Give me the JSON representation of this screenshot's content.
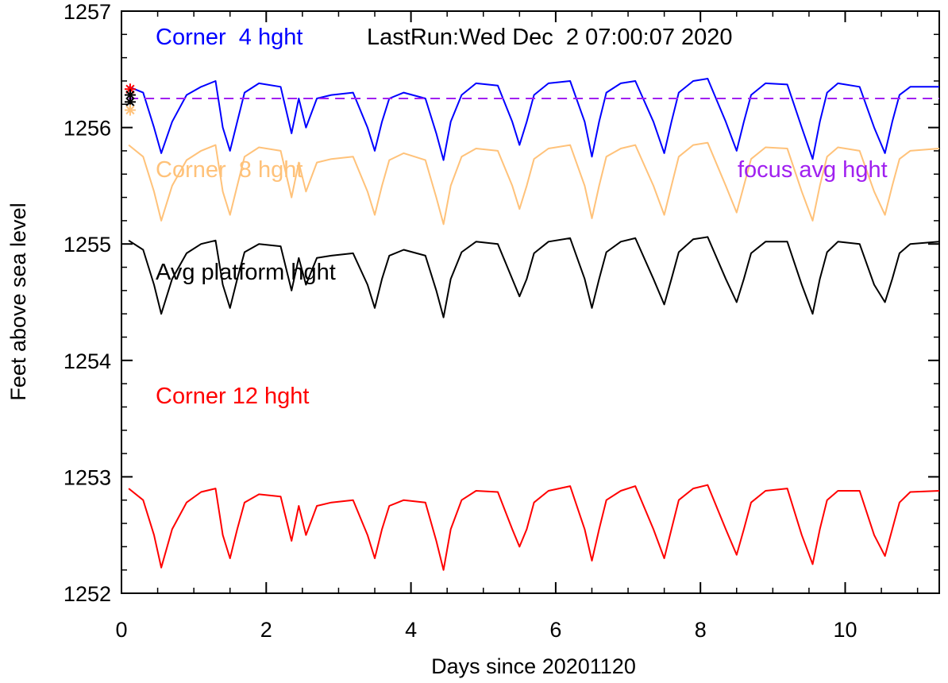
{
  "chart_data": {
    "type": "line",
    "xlabel": "Days since 20201120",
    "ylabel": "Feet above sea level",
    "xlim": [
      0,
      11.3
    ],
    "ylim": [
      1252,
      1257
    ],
    "xticks": [
      0,
      2,
      4,
      6,
      8,
      10
    ],
    "yticks": [
      1252,
      1253,
      1254,
      1255,
      1256,
      1257
    ],
    "grid": false,
    "last_run": "LastRun:Wed Dec  2 07:00:07 2020",
    "series": [
      {
        "name": "Corner  4 hght",
        "color": "#0000ff",
        "x": [
          0.1,
          0.3,
          0.45,
          0.55,
          0.7,
          0.9,
          1.1,
          1.3,
          1.4,
          1.5,
          1.6,
          1.7,
          1.9,
          2.2,
          2.35,
          2.45,
          2.55,
          2.7,
          2.9,
          3.2,
          3.4,
          3.5,
          3.6,
          3.7,
          3.9,
          4.2,
          4.35,
          4.45,
          4.55,
          4.7,
          4.9,
          5.2,
          5.4,
          5.5,
          5.6,
          5.7,
          5.9,
          6.2,
          6.4,
          6.5,
          6.6,
          6.7,
          6.9,
          7.1,
          7.35,
          7.5,
          7.6,
          7.7,
          7.9,
          8.1,
          8.35,
          8.5,
          8.6,
          8.7,
          8.9,
          9.2,
          9.4,
          9.55,
          9.65,
          9.75,
          9.9,
          10.2,
          10.4,
          10.55,
          10.65,
          10.75,
          10.9,
          11.3
        ],
        "y": [
          1256.35,
          1256.3,
          1256.0,
          1255.78,
          1256.05,
          1256.28,
          1256.35,
          1256.4,
          1256.0,
          1255.8,
          1256.05,
          1256.3,
          1256.38,
          1256.35,
          1255.95,
          1256.25,
          1256.0,
          1256.25,
          1256.28,
          1256.3,
          1256.0,
          1255.8,
          1256.05,
          1256.25,
          1256.3,
          1256.25,
          1255.95,
          1255.72,
          1256.05,
          1256.28,
          1256.38,
          1256.36,
          1256.05,
          1255.85,
          1256.05,
          1256.28,
          1256.38,
          1256.4,
          1256.05,
          1255.75,
          1256.05,
          1256.3,
          1256.38,
          1256.4,
          1256.05,
          1255.78,
          1256.05,
          1256.3,
          1256.4,
          1256.42,
          1256.05,
          1255.8,
          1256.05,
          1256.28,
          1256.38,
          1256.37,
          1256.0,
          1255.73,
          1256.05,
          1256.3,
          1256.38,
          1256.35,
          1256.0,
          1255.78,
          1256.05,
          1256.28,
          1256.35,
          1256.35
        ]
      },
      {
        "name": "Corner  8 hght",
        "color": "#ffc27a",
        "x": [
          0.1,
          0.3,
          0.45,
          0.55,
          0.7,
          0.9,
          1.1,
          1.3,
          1.4,
          1.5,
          1.6,
          1.7,
          1.9,
          2.2,
          2.35,
          2.45,
          2.55,
          2.7,
          2.9,
          3.2,
          3.4,
          3.5,
          3.6,
          3.7,
          3.9,
          4.2,
          4.35,
          4.45,
          4.55,
          4.7,
          4.9,
          5.2,
          5.4,
          5.5,
          5.6,
          5.7,
          5.9,
          6.2,
          6.4,
          6.5,
          6.6,
          6.7,
          6.9,
          7.1,
          7.35,
          7.5,
          7.6,
          7.7,
          7.9,
          8.1,
          8.35,
          8.5,
          8.6,
          8.7,
          8.9,
          9.2,
          9.4,
          9.55,
          9.65,
          9.75,
          9.9,
          10.2,
          10.4,
          10.55,
          10.65,
          10.75,
          10.9,
          11.3
        ],
        "y": [
          1255.85,
          1255.75,
          1255.45,
          1255.2,
          1255.5,
          1255.72,
          1255.8,
          1255.85,
          1255.45,
          1255.25,
          1255.5,
          1255.75,
          1255.83,
          1255.8,
          1255.4,
          1255.7,
          1255.45,
          1255.7,
          1255.73,
          1255.75,
          1255.45,
          1255.25,
          1255.5,
          1255.72,
          1255.78,
          1255.72,
          1255.4,
          1255.17,
          1255.5,
          1255.75,
          1255.82,
          1255.8,
          1255.5,
          1255.3,
          1255.5,
          1255.73,
          1255.82,
          1255.85,
          1255.5,
          1255.22,
          1255.5,
          1255.75,
          1255.82,
          1255.85,
          1255.5,
          1255.25,
          1255.5,
          1255.75,
          1255.85,
          1255.87,
          1255.5,
          1255.27,
          1255.5,
          1255.73,
          1255.83,
          1255.82,
          1255.45,
          1255.2,
          1255.5,
          1255.75,
          1255.83,
          1255.8,
          1255.45,
          1255.25,
          1255.5,
          1255.73,
          1255.8,
          1255.82
        ]
      },
      {
        "name": "Avg platform hght",
        "color": "#000000",
        "x": [
          0.1,
          0.3,
          0.45,
          0.55,
          0.7,
          0.9,
          1.1,
          1.3,
          1.4,
          1.5,
          1.6,
          1.7,
          1.9,
          2.2,
          2.35,
          2.45,
          2.55,
          2.7,
          2.9,
          3.2,
          3.4,
          3.5,
          3.6,
          3.7,
          3.9,
          4.2,
          4.35,
          4.45,
          4.55,
          4.7,
          4.9,
          5.2,
          5.4,
          5.5,
          5.6,
          5.7,
          5.9,
          6.2,
          6.4,
          6.5,
          6.6,
          6.7,
          6.9,
          7.1,
          7.35,
          7.5,
          7.6,
          7.7,
          7.9,
          8.1,
          8.35,
          8.5,
          8.6,
          8.7,
          8.9,
          9.2,
          9.4,
          9.55,
          9.65,
          9.75,
          9.9,
          10.2,
          10.4,
          10.55,
          10.65,
          10.75,
          10.9,
          11.3
        ],
        "y": [
          1255.03,
          1254.95,
          1254.65,
          1254.4,
          1254.7,
          1254.92,
          1255.0,
          1255.03,
          1254.65,
          1254.45,
          1254.7,
          1254.93,
          1255.0,
          1254.98,
          1254.6,
          1254.88,
          1254.65,
          1254.88,
          1254.9,
          1254.92,
          1254.65,
          1254.45,
          1254.7,
          1254.9,
          1254.95,
          1254.9,
          1254.6,
          1254.37,
          1254.7,
          1254.93,
          1255.02,
          1255.0,
          1254.7,
          1254.55,
          1254.7,
          1254.92,
          1255.02,
          1255.05,
          1254.7,
          1254.45,
          1254.7,
          1254.93,
          1255.02,
          1255.05,
          1254.7,
          1254.48,
          1254.7,
          1254.93,
          1255.04,
          1255.06,
          1254.7,
          1254.5,
          1254.7,
          1254.92,
          1255.02,
          1255.02,
          1254.65,
          1254.4,
          1254.7,
          1254.93,
          1255.02,
          1255.0,
          1254.65,
          1254.5,
          1254.7,
          1254.92,
          1255.0,
          1255.02
        ]
      },
      {
        "name": "Corner 12 hght",
        "color": "#ff0000",
        "x": [
          0.1,
          0.3,
          0.45,
          0.55,
          0.7,
          0.9,
          1.1,
          1.3,
          1.4,
          1.5,
          1.6,
          1.7,
          1.9,
          2.2,
          2.35,
          2.45,
          2.55,
          2.7,
          2.9,
          3.2,
          3.4,
          3.5,
          3.6,
          3.7,
          3.9,
          4.2,
          4.35,
          4.45,
          4.55,
          4.7,
          4.9,
          5.2,
          5.4,
          5.5,
          5.6,
          5.7,
          5.9,
          6.2,
          6.4,
          6.5,
          6.6,
          6.7,
          6.9,
          7.1,
          7.35,
          7.5,
          7.6,
          7.7,
          7.9,
          8.1,
          8.35,
          8.5,
          8.6,
          8.7,
          8.9,
          9.2,
          9.4,
          9.55,
          9.65,
          9.75,
          9.9,
          10.2,
          10.4,
          10.55,
          10.65,
          10.75,
          10.9,
          11.3
        ],
        "y": [
          1252.9,
          1252.8,
          1252.5,
          1252.22,
          1252.55,
          1252.78,
          1252.87,
          1252.9,
          1252.5,
          1252.3,
          1252.55,
          1252.78,
          1252.85,
          1252.83,
          1252.45,
          1252.75,
          1252.5,
          1252.75,
          1252.78,
          1252.8,
          1252.5,
          1252.3,
          1252.55,
          1252.75,
          1252.8,
          1252.78,
          1252.45,
          1252.2,
          1252.55,
          1252.8,
          1252.88,
          1252.87,
          1252.55,
          1252.4,
          1252.55,
          1252.78,
          1252.88,
          1252.92,
          1252.55,
          1252.28,
          1252.55,
          1252.8,
          1252.88,
          1252.92,
          1252.55,
          1252.3,
          1252.55,
          1252.8,
          1252.9,
          1252.93,
          1252.55,
          1252.33,
          1252.55,
          1252.78,
          1252.88,
          1252.9,
          1252.5,
          1252.25,
          1252.55,
          1252.8,
          1252.88,
          1252.88,
          1252.5,
          1252.32,
          1252.55,
          1252.78,
          1252.87,
          1252.88
        ]
      },
      {
        "name": "focus avg hght",
        "color": "#a020f0",
        "style": "dashed",
        "x": [
          0.1,
          11.3
        ],
        "y": [
          1256.25,
          1256.25
        ]
      }
    ],
    "markers": [
      {
        "color": "#ff0000",
        "x": 0.12,
        "y": 1256.33
      },
      {
        "color": "#000000",
        "x": 0.12,
        "y": 1256.28
      },
      {
        "color": "#000000",
        "x": 0.12,
        "y": 1256.22
      },
      {
        "color": "#ffc27a",
        "x": 0.12,
        "y": 1256.15
      }
    ]
  }
}
